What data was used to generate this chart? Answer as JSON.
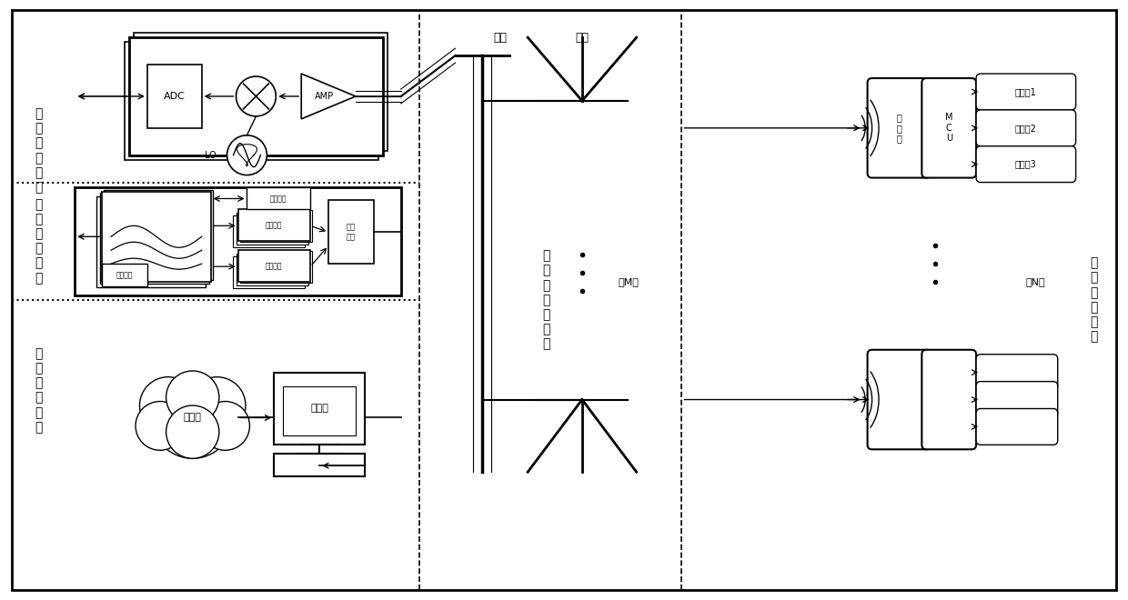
{
  "title": "",
  "bg_color": "#ffffff",
  "border_color": "#000000",
  "fig_width": 12.4,
  "fig_height": 6.6,
  "labels": {
    "signal_receive": "信\n号\n接\n收\n模\n块",
    "signal_process": "信\n号\n处\n理\n模\n块",
    "data_process": "数\n据\n处\n理\n模\n块",
    "antenna_feed": "天\n线\n与\n馈\n线\n模\n块",
    "wireless": "无\n线\n信\n标\n模\n块",
    "ADC": "ADC",
    "AMP": "AMP",
    "LO": "LO",
    "filter_bank": "滤波器组",
    "carrier_phase": "载波相位",
    "code_phase": "编码相位",
    "info_demod": "信息解调",
    "info_fusion": "信息\n综合",
    "database": "数据库",
    "computer": "计算机",
    "transmitter": "发\n射\n器",
    "MCU": "M\nC\nU",
    "sensor1": "传感器1",
    "sensor2": "传感器2",
    "sensor3": "传感器3",
    "feedline": "馈线",
    "antenna": "天线",
    "total_M": "共M个",
    "total_N": "共N个"
  }
}
